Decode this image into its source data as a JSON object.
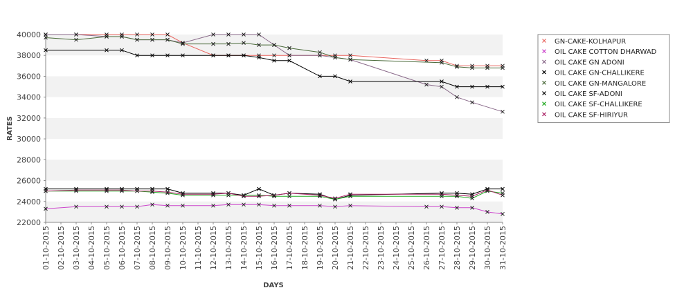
{
  "chart_data": {
    "type": "line",
    "xlabel": "DAYS",
    "ylabel": "RATES",
    "ylim": [
      22000,
      40000
    ],
    "yticks": [
      22000,
      24000,
      26000,
      28000,
      30000,
      32000,
      34000,
      36000,
      38000,
      40000
    ],
    "grid": "alternating horizontal bands",
    "legend_position": "right",
    "categories": [
      "01-10-2015",
      "02-10-2015",
      "03-10-2015",
      "04-10-2015",
      "05-10-2015",
      "06-10-2015",
      "07-10-2015",
      "08-10-2015",
      "09-10-2015",
      "10-10-2015",
      "11-10-2015",
      "12-10-2015",
      "13-10-2015",
      "14-10-2015",
      "15-10-2015",
      "16-10-2015",
      "17-10-2015",
      "18-10-2015",
      "19-10-2015",
      "20-10-2015",
      "21-10-2015",
      "22-10-2015",
      "23-10-2015",
      "24-10-2015",
      "25-10-2015",
      "26-10-2015",
      "27-10-2015",
      "28-10-2015",
      "29-10-2015",
      "30-10-2015",
      "31-10-2015"
    ],
    "series": [
      {
        "name": "GN-CAKE-KOLHAPUR",
        "color": "#e8645e",
        "values": [
          40000,
          null,
          40000,
          null,
          40000,
          40000,
          40000,
          40000,
          40000,
          39200,
          null,
          38000,
          38000,
          38000,
          38000,
          38000,
          38000,
          null,
          38000,
          38000,
          38000,
          null,
          null,
          null,
          null,
          37500,
          37500,
          37000,
          37000,
          37000,
          37000
        ]
      },
      {
        "name": "OIL CAKE COTTON DHARWAD",
        "color": "#cc44cc",
        "values": [
          23300,
          null,
          23500,
          null,
          23500,
          23500,
          23500,
          23700,
          23600,
          23600,
          null,
          23600,
          23700,
          23700,
          23700,
          23600,
          23600,
          null,
          23600,
          23500,
          23600,
          null,
          null,
          null,
          null,
          23500,
          23500,
          23400,
          23400,
          23000,
          22800
        ]
      },
      {
        "name": "OIL CAKE GN ADONI",
        "color": "#8a6a8a",
        "values": [
          40000,
          null,
          40000,
          null,
          39800,
          39800,
          39500,
          39500,
          39500,
          39200,
          null,
          40000,
          40000,
          40000,
          40000,
          39000,
          38000,
          null,
          38000,
          37800,
          37600,
          null,
          null,
          null,
          null,
          35200,
          35000,
          34000,
          33500,
          null,
          32600
        ]
      },
      {
        "name": "OIL CAKE GN-CHALLIKERE",
        "color": "#000000",
        "values": [
          38500,
          null,
          null,
          null,
          38500,
          38500,
          38000,
          38000,
          38000,
          38000,
          null,
          38000,
          38000,
          38000,
          37800,
          37500,
          37500,
          null,
          36000,
          36000,
          35500,
          null,
          null,
          null,
          null,
          null,
          35500,
          35000,
          35000,
          35000,
          35000
        ]
      },
      {
        "name": "OIL CAKE GN-MANGALORE",
        "color": "#4a6a3a",
        "values": [
          39700,
          null,
          39500,
          null,
          39800,
          39800,
          39500,
          39500,
          39500,
          39100,
          null,
          39100,
          39100,
          39200,
          39000,
          39000,
          38700,
          null,
          38300,
          37800,
          37600,
          null,
          null,
          null,
          null,
          null,
          37300,
          36900,
          36800,
          36800,
          36800
        ]
      },
      {
        "name": "OIL CAKE SF-ADONI",
        "color": "#000000",
        "values": [
          25200,
          null,
          25200,
          null,
          25200,
          25200,
          25200,
          25200,
          25200,
          24800,
          null,
          24800,
          24800,
          24600,
          25200,
          24600,
          24800,
          null,
          24700,
          24200,
          24600,
          null,
          null,
          null,
          null,
          null,
          24800,
          24800,
          24700,
          25200,
          25200
        ]
      },
      {
        "name": "OIL CAKE SF-CHALLIKERE",
        "color": "#22aa22",
        "values": [
          25000,
          null,
          25000,
          null,
          25000,
          25000,
          25000,
          24900,
          24800,
          24600,
          null,
          24600,
          24600,
          24600,
          24600,
          24500,
          24500,
          null,
          24500,
          24200,
          24500,
          null,
          null,
          null,
          null,
          null,
          24500,
          24500,
          24300,
          25000,
          24800
        ]
      },
      {
        "name": "OIL CAKE SF-HIRIYUR",
        "color": "#aa2266",
        "values": [
          25000,
          null,
          25100,
          null,
          25100,
          25100,
          25000,
          25000,
          24900,
          24700,
          null,
          24700,
          24800,
          24500,
          24500,
          24600,
          24800,
          null,
          24600,
          24300,
          24700,
          null,
          null,
          null,
          null,
          null,
          24700,
          24600,
          24500,
          25100,
          24600
        ]
      }
    ]
  }
}
